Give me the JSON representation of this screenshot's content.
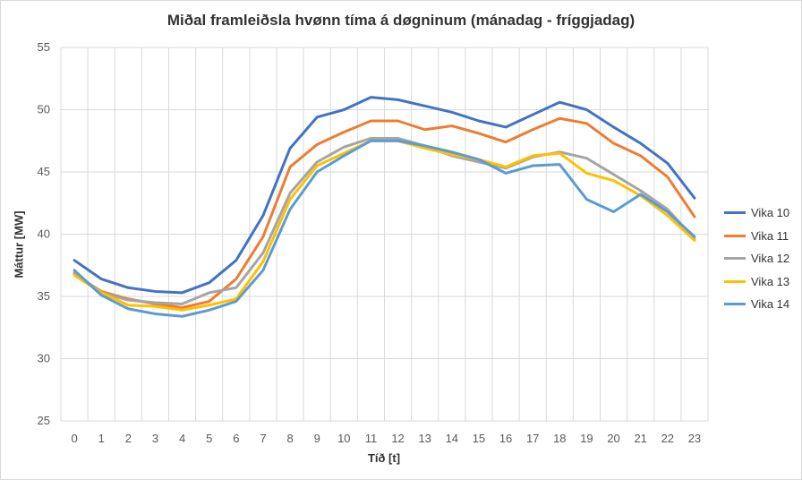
{
  "chart_data": {
    "type": "line",
    "title": "Miðal framleiðsla hvønn tíma á døgninum (mánadag - fríggjadag)",
    "xlabel": "Tíð [t]",
    "ylabel": "Máttur [MW]",
    "x": [
      0,
      1,
      2,
      3,
      4,
      5,
      6,
      7,
      8,
      9,
      10,
      11,
      12,
      13,
      14,
      15,
      16,
      17,
      18,
      19,
      20,
      21,
      22,
      23
    ],
    "ylim": [
      25,
      55
    ],
    "yticks": [
      25,
      30,
      35,
      40,
      45,
      50,
      55
    ],
    "grid": true,
    "legend_position": "right",
    "series": [
      {
        "name": "Vika 10",
        "color": "#4472c4",
        "values": [
          37.9,
          36.4,
          35.7,
          35.4,
          35.3,
          36.1,
          37.9,
          41.5,
          46.9,
          49.4,
          50.0,
          51.0,
          50.8,
          50.3,
          49.8,
          49.1,
          48.6,
          49.6,
          50.6,
          50.0,
          48.6,
          47.3,
          45.7,
          42.9
        ]
      },
      {
        "name": "Vika 11",
        "color": "#ed7d31",
        "values": [
          36.8,
          35.4,
          34.8,
          34.4,
          34.1,
          34.6,
          36.4,
          39.8,
          45.4,
          47.2,
          48.2,
          49.1,
          49.1,
          48.4,
          48.7,
          48.1,
          47.4,
          48.4,
          49.3,
          48.9,
          47.3,
          46.3,
          44.6,
          41.4
        ]
      },
      {
        "name": "Vika 12",
        "color": "#a5a5a5",
        "values": [
          36.9,
          35.3,
          34.7,
          34.5,
          34.4,
          35.3,
          35.7,
          38.5,
          43.3,
          45.8,
          47.0,
          47.7,
          47.7,
          47.1,
          46.3,
          45.8,
          45.3,
          46.2,
          46.6,
          46.1,
          44.8,
          43.5,
          42.0,
          39.6
        ]
      },
      {
        "name": "Vika 13",
        "color": "#ffc000",
        "values": [
          36.7,
          35.3,
          34.3,
          34.2,
          33.9,
          34.3,
          34.8,
          37.8,
          42.8,
          45.5,
          46.5,
          47.5,
          47.5,
          46.9,
          46.4,
          46.0,
          45.4,
          46.3,
          46.5,
          44.9,
          44.3,
          43.1,
          41.5,
          39.5
        ]
      },
      {
        "name": "Vika 14",
        "color": "#5b9bd5",
        "values": [
          37.1,
          35.1,
          34.0,
          33.6,
          33.4,
          33.9,
          34.6,
          37.1,
          42.0,
          45.0,
          46.3,
          47.5,
          47.5,
          47.1,
          46.6,
          46.0,
          44.9,
          45.5,
          45.6,
          42.8,
          41.8,
          43.2,
          41.8,
          39.8
        ]
      }
    ]
  }
}
